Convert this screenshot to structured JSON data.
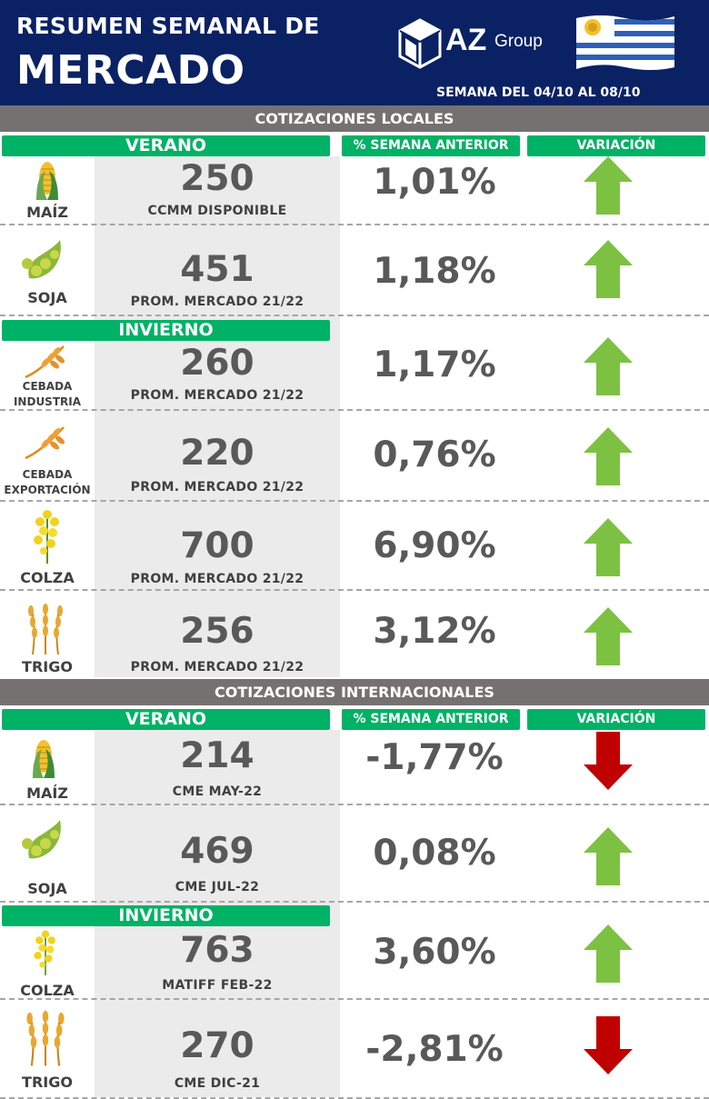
{
  "header": {
    "title_line1": "RESUMEN SEMANAL DE",
    "title_line2": "MERCADO",
    "logo_text": "AZ",
    "logo_group": "Group",
    "week": "SEMANA DEL 04/10 AL 08/10"
  },
  "columns": {
    "pct_label": "% SEMANA ANTERIOR",
    "variation_label": "VARIACIÓN"
  },
  "local": {
    "section_title": "COTIZACIONES LOCALES",
    "summer_label": "VERANO",
    "winter_label": "INVIERNO",
    "rows": [
      {
        "icon": "corn-icon",
        "label": "MAÍZ",
        "price": "250",
        "sub": "CCMM DISPONIBLE",
        "pct": "1,01%",
        "direction": "up"
      },
      {
        "icon": "soy-icon",
        "label": "SOJA",
        "price": "451",
        "sub": "PROM. MERCADO 21/22",
        "pct": "1,18%",
        "direction": "up"
      },
      {
        "icon": "barley-icon",
        "label": "CEBADA INDUSTRIA",
        "label_line1": "CEBADA",
        "label_line2": "INDUSTRIA",
        "price": "260",
        "sub": "PROM. MERCADO 21/22",
        "pct": "1,17%",
        "direction": "up"
      },
      {
        "icon": "barley-icon",
        "label": "CEBADA EXPORTACIÓN",
        "label_line1": "CEBADA",
        "label_line2": "EXPORTACIÓN",
        "price": "220",
        "sub": "PROM. MERCADO 21/22",
        "pct": "0,76%",
        "direction": "up"
      },
      {
        "icon": "rapeseed-icon",
        "label": "COLZA",
        "price": "700",
        "sub": "PROM. MERCADO 21/22",
        "pct": "6,90%",
        "direction": "up"
      },
      {
        "icon": "wheat-icon",
        "label": "TRIGO",
        "price": "256",
        "sub": "PROM. MERCADO 21/22",
        "pct": "3,12%",
        "direction": "up"
      }
    ]
  },
  "international": {
    "section_title": "COTIZACIONES INTERNACIONALES",
    "summer_label": "VERANO",
    "winter_label": "INVIERNO",
    "rows": [
      {
        "icon": "corn-icon",
        "label": "MAÍZ",
        "price": "214",
        "sub": "CME MAY-22",
        "pct": "-1,77%",
        "direction": "down"
      },
      {
        "icon": "soy-icon",
        "label": "SOJA",
        "price": "469",
        "sub": "CME JUL-22",
        "pct": "0,08%",
        "direction": "up"
      },
      {
        "icon": "rapeseed-icon",
        "label": "COLZA",
        "price": "763",
        "sub": "MATIFF FEB-22",
        "pct": "3,60%",
        "direction": "up"
      },
      {
        "icon": "wheat-icon",
        "label": "TRIGO",
        "price": "270",
        "sub": "CME DIC-21",
        "pct": "-2,81%",
        "direction": "down"
      }
    ]
  },
  "colors": {
    "header_bg": "#0a2164",
    "section_bar": "#767171",
    "green_pill": "#00b266",
    "arrow_up": "#7dc142",
    "arrow_down": "#c00000"
  }
}
